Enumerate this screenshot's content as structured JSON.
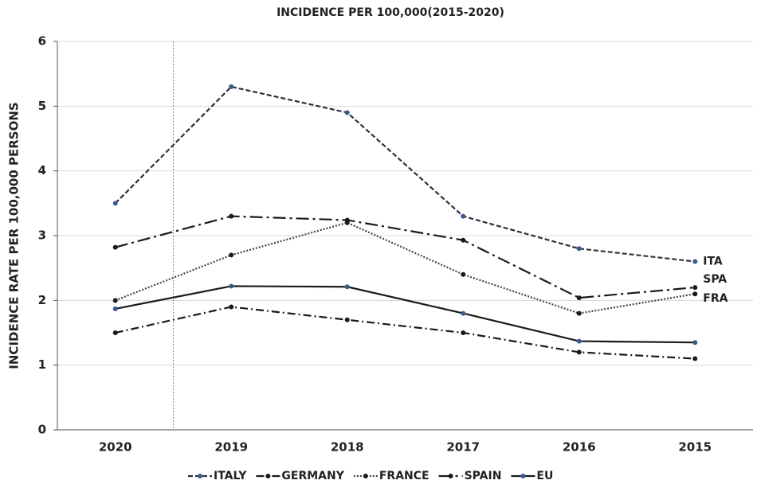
{
  "chart_data": {
    "type": "line",
    "title": "INCIDENCE PER 100,000(2015-2020)",
    "y_label": "INCIDENCE RATE PER 100,000 PERSONS",
    "categories": [
      "2020",
      "2019",
      "2018",
      "2017",
      "2016",
      "2015"
    ],
    "series": [
      {
        "name": "ITALY",
        "color": "#2e2e3e",
        "marker_color": "#3a5a8c",
        "line_style": "dashed",
        "end_label": "ITA",
        "values": [
          3.5,
          5.3,
          4.9,
          3.3,
          2.8,
          2.6
        ]
      },
      {
        "name": "GERMANY",
        "color": "#1a1a1a",
        "marker_color": "#1a1a1a",
        "line_style": "dashdot",
        "values": [
          1.5,
          1.9,
          1.7,
          1.5,
          1.2,
          1.1
        ]
      },
      {
        "name": "FRANCE",
        "color": "#444444",
        "marker_color": "#1a1a1a",
        "line_style": "dotted",
        "end_label": "FRA",
        "values": [
          2.0,
          2.7,
          3.2,
          2.4,
          1.8,
          2.1
        ]
      },
      {
        "name": "SPAIN",
        "color": "#1a1a1a",
        "marker_color": "#1a1a1a",
        "line_style": "longdashdot",
        "end_label": "SPA",
        "values": [
          2.82,
          3.3,
          3.24,
          2.93,
          2.04,
          2.2
        ]
      },
      {
        "name": "EU",
        "color": "#1a1a1a",
        "marker_color": "#3a5a8c",
        "line_style": "solid",
        "values": [
          1.87,
          2.22,
          2.21,
          1.8,
          1.37,
          1.35
        ]
      }
    ],
    "ylim": [
      0,
      6
    ],
    "yticks": [
      0,
      1,
      2,
      3,
      4,
      5,
      6
    ],
    "grid": true,
    "legend": "bottom"
  }
}
